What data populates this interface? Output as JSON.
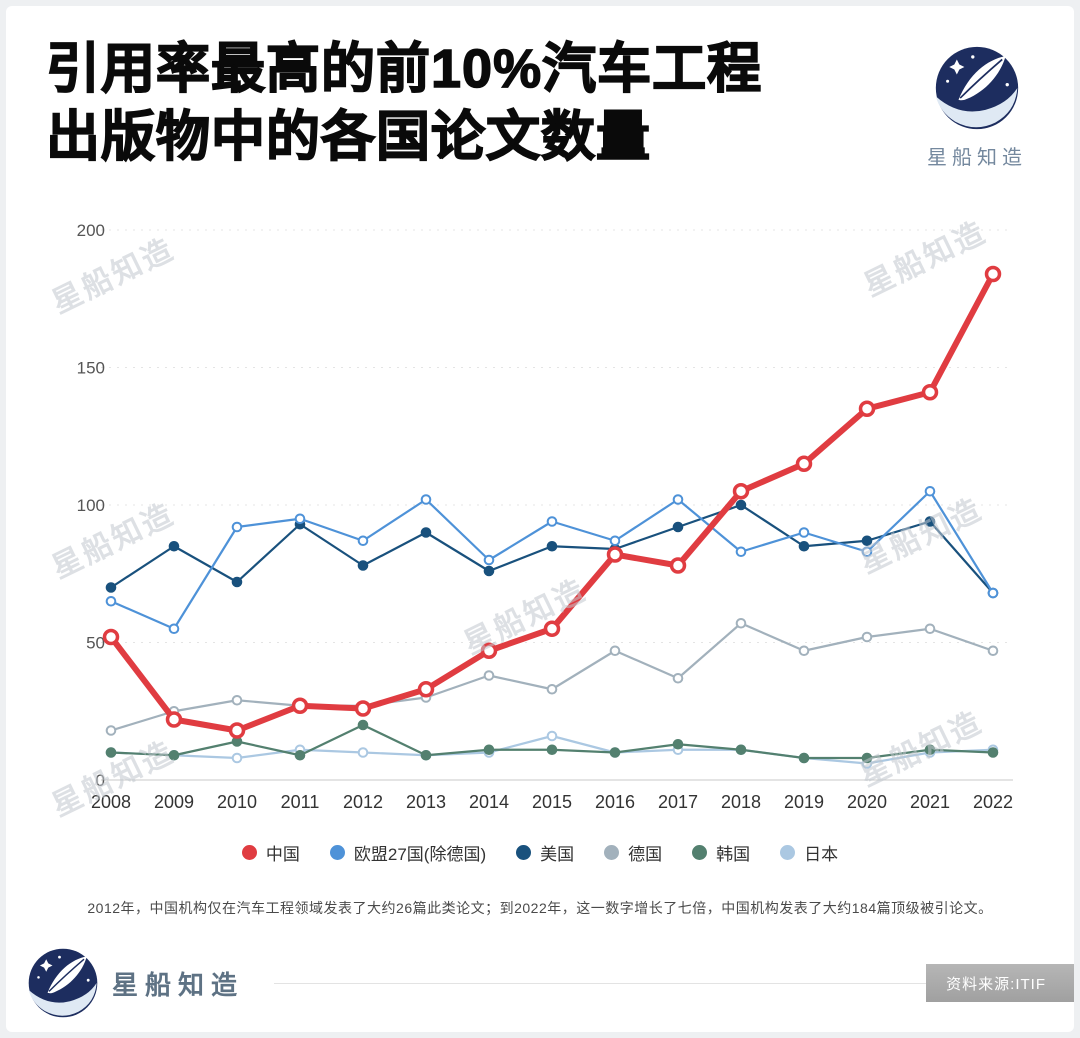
{
  "page": {
    "title_line1": "引用率最高的前10%汽车工程",
    "title_line2": "出版物中的各国论文数量",
    "brand_name": "星船知造",
    "watermark_text": "星船知造",
    "caption": "2012年，中国机构仅在汽车工程领域发表了大约26篇此类论文；到2022年，这一数字增长了七倍，中国机构发表了大约184篇顶级被引论文。",
    "source_label": "资料来源:ITIF",
    "logo_color": "#1d2d5f",
    "watermark_color": "#c2c8cf"
  },
  "chart_data": {
    "type": "line",
    "x": [
      2008,
      2009,
      2010,
      2011,
      2012,
      2013,
      2014,
      2015,
      2016,
      2017,
      2018,
      2019,
      2020,
      2021,
      2022
    ],
    "series": [
      {
        "name": "中国",
        "color": "#e03c41",
        "emphasis": true,
        "marker": "open",
        "values": [
          52,
          22,
          18,
          27,
          26,
          33,
          47,
          55,
          82,
          78,
          105,
          115,
          135,
          141,
          184
        ]
      },
      {
        "name": "欧盟27国(除德国)",
        "color": "#4e92d8",
        "emphasis": false,
        "marker": "open",
        "values": [
          65,
          55,
          92,
          95,
          87,
          102,
          80,
          94,
          87,
          102,
          83,
          90,
          83,
          105,
          68
        ]
      },
      {
        "name": "美国",
        "color": "#19517d",
        "emphasis": false,
        "marker": "filled",
        "values": [
          70,
          85,
          72,
          93,
          78,
          90,
          76,
          85,
          84,
          92,
          100,
          85,
          87,
          94,
          68
        ]
      },
      {
        "name": "德国",
        "color": "#a2b1bc",
        "emphasis": false,
        "marker": "open",
        "values": [
          18,
          25,
          29,
          27,
          27,
          30,
          38,
          33,
          47,
          37,
          57,
          47,
          52,
          55,
          47
        ]
      },
      {
        "name": "韩国",
        "color": "#53806f",
        "emphasis": false,
        "marker": "filled",
        "values": [
          10,
          9,
          14,
          9,
          20,
          9,
          11,
          11,
          10,
          13,
          11,
          8,
          8,
          11,
          10
        ]
      },
      {
        "name": "日本",
        "color": "#abc8e2",
        "emphasis": false,
        "marker": "open",
        "values": [
          10,
          9,
          8,
          11,
          10,
          9,
          10,
          16,
          10,
          11,
          11,
          8,
          6,
          10,
          11
        ]
      }
    ],
    "title": "引用率最高的前10%汽车工程出版物中的各国论文数量",
    "xlabel": "",
    "ylabel": "",
    "ylim": [
      0,
      200
    ],
    "yticks": [
      0,
      50,
      100,
      150,
      200
    ],
    "grid": "faint dashed horizontal",
    "legend_position": "bottom"
  }
}
